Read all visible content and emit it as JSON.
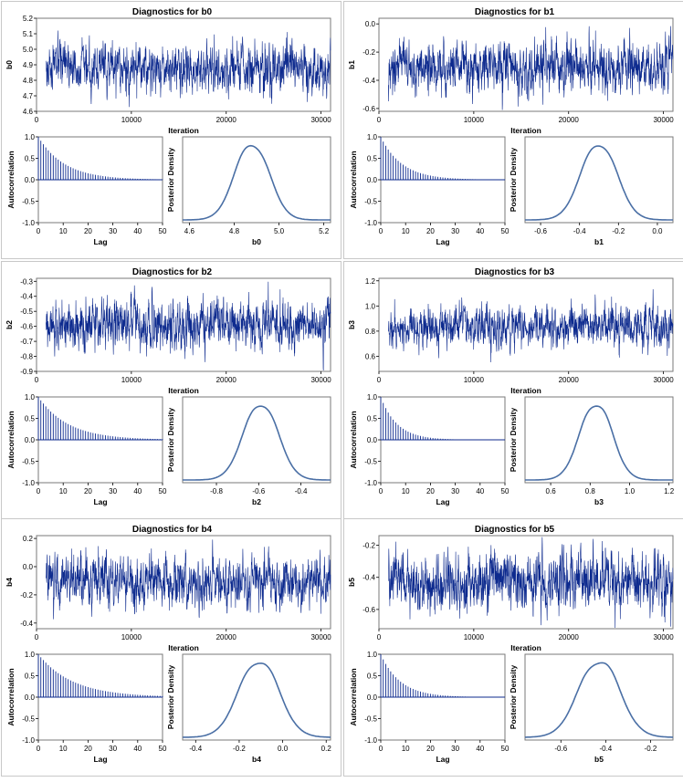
{
  "style": {
    "trace_color": "#0d2a8e",
    "line_color": "#4a6fa5",
    "frame_color": "#7a7a7a",
    "panel_border": "#c8c8c8"
  },
  "chart_data": [
    {
      "type": "line",
      "parameter": "b0",
      "title": "Diagnostics for b0",
      "trace": {
        "xlabel": "Iteration",
        "ylabel": "b0",
        "xlim": [
          0,
          31000
        ],
        "ylim": [
          4.6,
          5.2
        ],
        "xticks": [
          "0",
          "10000",
          "20000",
          "30000"
        ],
        "xtick_values": [
          0,
          10000,
          20000,
          30000
        ],
        "yticks": [
          "4.6",
          "4.7",
          "4.8",
          "4.9",
          "5.0",
          "5.1",
          "5.2"
        ],
        "ytick_values": [
          4.6,
          4.7,
          4.8,
          4.9,
          5.0,
          5.1,
          5.2
        ],
        "iter_start": 1000,
        "iter_end": 31000,
        "center": 4.88,
        "sd": 0.075
      },
      "acf": {
        "xlabel": "Lag",
        "ylabel": "Autocorrelation",
        "xlim": [
          0,
          50
        ],
        "ylim": [
          -1,
          1
        ],
        "xticks": [
          "0",
          "10",
          "20",
          "30",
          "40",
          "50"
        ],
        "xtick_values": [
          0,
          10,
          20,
          30,
          40,
          50
        ],
        "yticks": [
          "-1.0",
          "-0.5",
          "0.0",
          "0.5",
          "1.0"
        ],
        "ytick_values": [
          -1,
          -0.5,
          0,
          0.5,
          1
        ],
        "lag1": 0.91
      },
      "density": {
        "xlabel": "b0",
        "ylabel": "Posterior Density",
        "xlim": [
          4.57,
          5.23
        ],
        "xticks": [
          "4.6",
          "4.8",
          "5.0",
          "5.2"
        ],
        "xtick_values": [
          4.6,
          4.8,
          5.0,
          5.2
        ],
        "mean": 4.88,
        "sd": 0.075
      }
    },
    {
      "type": "line",
      "parameter": "b1",
      "title": "Diagnostics for b1",
      "trace": {
        "xlabel": "Iteration",
        "ylabel": "b1",
        "xlim": [
          0,
          31000
        ],
        "ylim": [
          -0.62,
          0.04
        ],
        "xticks": [
          "0",
          "10000",
          "20000",
          "30000"
        ],
        "xtick_values": [
          0,
          10000,
          20000,
          30000
        ],
        "yticks": [
          "-0.6",
          "-0.4",
          "-0.2",
          "0.0"
        ],
        "ytick_values": [
          -0.6,
          -0.4,
          -0.2,
          0.0
        ],
        "iter_start": 1000,
        "iter_end": 31000,
        "center": -0.3,
        "sd": 0.09
      },
      "acf": {
        "xlabel": "Lag",
        "ylabel": "Autocorrelation",
        "xlim": [
          0,
          50
        ],
        "ylim": [
          -1,
          1
        ],
        "xticks": [
          "0",
          "10",
          "20",
          "30",
          "40",
          "50"
        ],
        "xtick_values": [
          0,
          10,
          20,
          30,
          40,
          50
        ],
        "yticks": [
          "-1.0",
          "-0.5",
          "0.0",
          "0.5",
          "1.0"
        ],
        "ytick_values": [
          -1,
          -0.5,
          0,
          0.5,
          1
        ],
        "lag1": 0.89
      },
      "density": {
        "xlabel": "b1",
        "ylabel": "Posterior Density",
        "xlim": [
          -0.68,
          0.08
        ],
        "xticks": [
          "-0.6",
          "-0.4",
          "-0.2",
          "0.0"
        ],
        "xtick_values": [
          -0.6,
          -0.4,
          -0.2,
          0.0
        ],
        "mean": -0.3,
        "sd": 0.09
      }
    },
    {
      "type": "line",
      "parameter": "b2",
      "title": "Diagnostics for b2",
      "trace": {
        "xlabel": "Iteration",
        "ylabel": "b2",
        "xlim": [
          0,
          31000
        ],
        "ylim": [
          -0.9,
          -0.28
        ],
        "xticks": [
          "0",
          "10000",
          "20000",
          "30000"
        ],
        "xtick_values": [
          0,
          10000,
          20000,
          30000
        ],
        "yticks": [
          "-0.9",
          "-0.8",
          "-0.7",
          "-0.6",
          "-0.5",
          "-0.4",
          "-0.3"
        ],
        "ytick_values": [
          -0.9,
          -0.8,
          -0.7,
          -0.6,
          -0.5,
          -0.4,
          -0.3
        ],
        "iter_start": 1000,
        "iter_end": 31000,
        "center": -0.59,
        "sd": 0.08
      },
      "acf": {
        "xlabel": "Lag",
        "ylabel": "Autocorrelation",
        "xlim": [
          0,
          50
        ],
        "ylim": [
          -1,
          1
        ],
        "xticks": [
          "0",
          "10",
          "20",
          "30",
          "40",
          "50"
        ],
        "xtick_values": [
          0,
          10,
          20,
          30,
          40,
          50
        ],
        "yticks": [
          "-1.0",
          "-0.5",
          "0.0",
          "0.5",
          "1.0"
        ],
        "ytick_values": [
          -1,
          -0.5,
          0,
          0.5,
          1
        ],
        "lag1": 0.92
      },
      "density": {
        "xlabel": "b2",
        "ylabel": "Posterior Density",
        "xlim": [
          -0.96,
          -0.26
        ],
        "xticks": [
          "-0.8",
          "-0.6",
          "-0.4"
        ],
        "xtick_values": [
          -0.8,
          -0.6,
          -0.4
        ],
        "mean": -0.59,
        "sd": 0.08
      }
    },
    {
      "type": "line",
      "parameter": "b3",
      "title": "Diagnostics for b3",
      "trace": {
        "xlabel": "Iteration",
        "ylabel": "b3",
        "xlim": [
          0,
          31000
        ],
        "ylim": [
          0.48,
          1.22
        ],
        "xticks": [
          "0",
          "10000",
          "20000",
          "30000"
        ],
        "xtick_values": [
          0,
          10000,
          20000,
          30000
        ],
        "yticks": [
          "0.6",
          "0.8",
          "1.0",
          "1.2"
        ],
        "ytick_values": [
          0.6,
          0.8,
          1.0,
          1.2
        ],
        "iter_start": 1000,
        "iter_end": 31000,
        "center": 0.83,
        "sd": 0.08
      },
      "acf": {
        "xlabel": "Lag",
        "ylabel": "Autocorrelation",
        "xlim": [
          0,
          50
        ],
        "ylim": [
          -1,
          1
        ],
        "xticks": [
          "0",
          "10",
          "20",
          "30",
          "40",
          "50"
        ],
        "xtick_values": [
          0,
          10,
          20,
          30,
          40,
          50
        ],
        "yticks": [
          "-1.0",
          "-0.5",
          "0.0",
          "0.5",
          "1.0"
        ],
        "ytick_values": [
          -1,
          -0.5,
          0,
          0.5,
          1
        ],
        "lag1": 0.86
      },
      "density": {
        "xlabel": "b3",
        "ylabel": "Posterior Density",
        "xlim": [
          0.47,
          1.22
        ],
        "xticks": [
          "0.6",
          "0.8",
          "1.0",
          "1.2"
        ],
        "xtick_values": [
          0.6,
          0.8,
          1.0,
          1.2
        ],
        "mean": 0.83,
        "sd": 0.08
      }
    },
    {
      "type": "line",
      "parameter": "b4",
      "title": "Diagnostics for b4",
      "trace": {
        "xlabel": "Iteration",
        "ylabel": "b4",
        "xlim": [
          0,
          31000
        ],
        "ylim": [
          -0.44,
          0.22
        ],
        "xticks": [
          "0",
          "10000",
          "20000",
          "30000"
        ],
        "xtick_values": [
          0,
          10000,
          20000,
          30000
        ],
        "yticks": [
          "-0.4",
          "-0.2",
          "0.0",
          "0.2"
        ],
        "ytick_values": [
          -0.4,
          -0.2,
          0.0,
          0.2
        ],
        "iter_start": 1000,
        "iter_end": 31000,
        "center": -0.11,
        "sd": 0.09
      },
      "acf": {
        "xlabel": "Lag",
        "ylabel": "Autocorrelation",
        "xlim": [
          0,
          50
        ],
        "ylim": [
          -1,
          1
        ],
        "xticks": [
          "0",
          "10",
          "20",
          "30",
          "40",
          "50"
        ],
        "xtick_values": [
          0,
          10,
          20,
          30,
          40,
          50
        ],
        "yticks": [
          "-1.0",
          "-0.5",
          "0.0",
          "0.5",
          "1.0"
        ],
        "ytick_values": [
          -1,
          -0.5,
          0,
          0.5,
          1
        ],
        "lag1": 0.93
      },
      "density": {
        "xlabel": "b4",
        "ylabel": "Posterior Density",
        "xlim": [
          -0.46,
          0.22
        ],
        "xticks": [
          "-0.4",
          "-0.2",
          "0.0",
          "0.2"
        ],
        "xtick_values": [
          -0.4,
          -0.2,
          0.0,
          0.2
        ],
        "mean": -0.11,
        "sd": 0.09
      }
    },
    {
      "type": "line",
      "parameter": "b5",
      "title": "Diagnostics for b5",
      "trace": {
        "xlabel": "Iteration",
        "ylabel": "b5",
        "xlim": [
          0,
          31000
        ],
        "ylim": [
          -0.72,
          -0.14
        ],
        "xticks": [
          "0",
          "10000",
          "20000",
          "30000"
        ],
        "xtick_values": [
          0,
          10000,
          20000,
          30000
        ],
        "yticks": [
          "-0.6",
          "-0.4",
          "-0.2"
        ],
        "ytick_values": [
          -0.6,
          -0.4,
          -0.2
        ],
        "iter_start": 1000,
        "iter_end": 31000,
        "center": -0.43,
        "sd": 0.09
      },
      "acf": {
        "xlabel": "Lag",
        "ylabel": "Autocorrelation",
        "xlim": [
          0,
          50
        ],
        "ylim": [
          -1,
          1
        ],
        "xticks": [
          "0",
          "10",
          "20",
          "30",
          "40",
          "50"
        ],
        "xtick_values": [
          0,
          10,
          20,
          30,
          40,
          50
        ],
        "yticks": [
          "-1.0",
          "-0.5",
          "0.0",
          "0.5",
          "1.0"
        ],
        "ytick_values": [
          -1,
          -0.5,
          0,
          0.5,
          1
        ],
        "lag1": 0.88
      },
      "density": {
        "xlabel": "b5",
        "ylabel": "Posterior Density",
        "xlim": [
          -0.76,
          -0.1
        ],
        "xticks": [
          "-0.6",
          "-0.4",
          "-0.2"
        ],
        "xtick_values": [
          -0.6,
          -0.4,
          -0.2
        ],
        "mean": -0.43,
        "sd": 0.09
      }
    }
  ]
}
